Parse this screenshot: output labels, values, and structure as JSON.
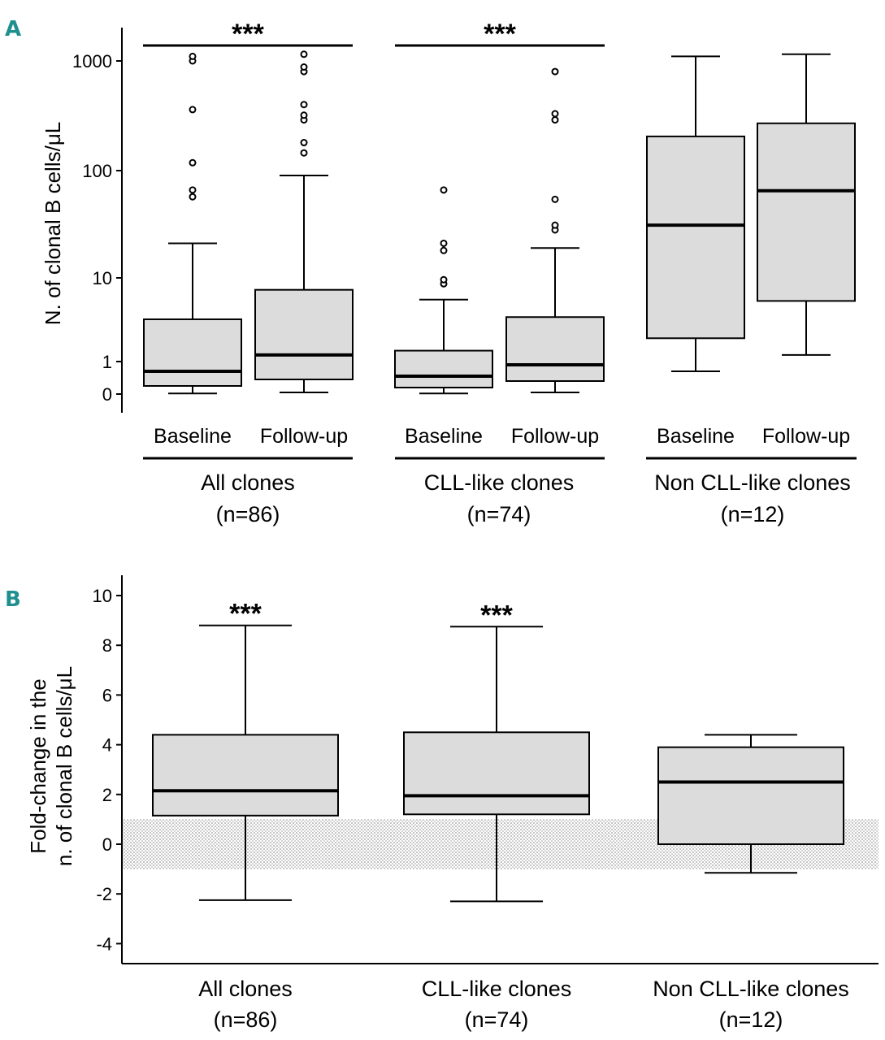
{
  "chart_data": [
    {
      "panel": "A",
      "type": "boxplot",
      "ylabel": "N. of clonal B cells/μL",
      "yscale": "pseudo-log",
      "yticks": [
        {
          "value": 0,
          "label": "0"
        },
        {
          "value": 1,
          "label": "1"
        },
        {
          "value": 10,
          "label": "10"
        },
        {
          "value": 100,
          "label": "100"
        },
        {
          "value": 1000,
          "label": "1000"
        }
      ],
      "groups": [
        {
          "name": "All clones",
          "n_label": "(n=86)",
          "significance": "***",
          "boxes": [
            {
              "label": "Baseline",
              "whisker_low": 0.02,
              "q1": 0.25,
              "median": 0.7,
              "q3": 3.2,
              "whisker_high": 21,
              "outliers": [
                57,
                66,
                118,
                360,
                1000,
                1100
              ]
            },
            {
              "label": "Follow-up",
              "whisker_low": 0.05,
              "q1": 0.45,
              "median": 1.2,
              "q3": 7.2,
              "whisker_high": 90,
              "outliers": [
                145,
                180,
                290,
                320,
                400,
                800,
                880,
                1150
              ]
            }
          ]
        },
        {
          "name": "CLL-like clones",
          "n_label": "(n=74)",
          "significance": "***",
          "boxes": [
            {
              "label": "Baseline",
              "whisker_low": 0.02,
              "q1": 0.2,
              "median": 0.55,
              "q3": 1.35,
              "whisker_high": 5.5,
              "outliers": [
                8.5,
                9.5,
                18,
                21,
                66
              ]
            },
            {
              "label": "Follow-up",
              "whisker_low": 0.05,
              "q1": 0.4,
              "median": 0.9,
              "q3": 3.4,
              "whisker_high": 19,
              "outliers": [
                28,
                31,
                54,
                290,
                330,
                800
              ]
            }
          ]
        },
        {
          "name": "Non CLL-like clones",
          "n_label": "(n=12)",
          "significance": "",
          "boxes": [
            {
              "label": "Baseline",
              "whisker_low": 0.7,
              "q1": 1.9,
              "median": 31,
              "q3": 205,
              "whisker_high": 1100,
              "outliers": []
            },
            {
              "label": "Follow-up",
              "whisker_low": 1.2,
              "q1": 5.3,
              "median": 65,
              "q3": 270,
              "whisker_high": 1150,
              "outliers": []
            }
          ]
        }
      ]
    },
    {
      "panel": "B",
      "type": "boxplot",
      "ylabel_lines": [
        "Fold-change in the",
        "n. of clonal B cells/μL"
      ],
      "ylim": [
        -4.8,
        10.8
      ],
      "yticks": [
        {
          "value": 10,
          "label": "10"
        },
        {
          "value": 8,
          "label": "8"
        },
        {
          "value": 6,
          "label": "6"
        },
        {
          "value": 4,
          "label": "4"
        },
        {
          "value": 2,
          "label": "2"
        },
        {
          "value": 0,
          "label": "0"
        },
        {
          "value": -2,
          "label": "-2"
        },
        {
          "value": -4,
          "label": "-4"
        }
      ],
      "reference_band": [
        -1,
        1
      ],
      "groups": [
        {
          "name": "All clones",
          "n_label": "(n=86)",
          "significance": "***",
          "whisker_low": -2.25,
          "q1": 1.15,
          "median": 2.15,
          "q3": 4.4,
          "whisker_high": 8.8
        },
        {
          "name": "CLL-like clones",
          "n_label": "(n=74)",
          "significance": "***",
          "whisker_low": -2.3,
          "q1": 1.2,
          "median": 1.95,
          "q3": 4.5,
          "whisker_high": 8.75
        },
        {
          "name": "Non CLL-like clones",
          "n_label": "(n=12)",
          "significance": "",
          "whisker_low": -1.15,
          "q1": 0.0,
          "median": 2.5,
          "q3": 3.9,
          "whisker_high": 4.4
        }
      ]
    }
  ]
}
